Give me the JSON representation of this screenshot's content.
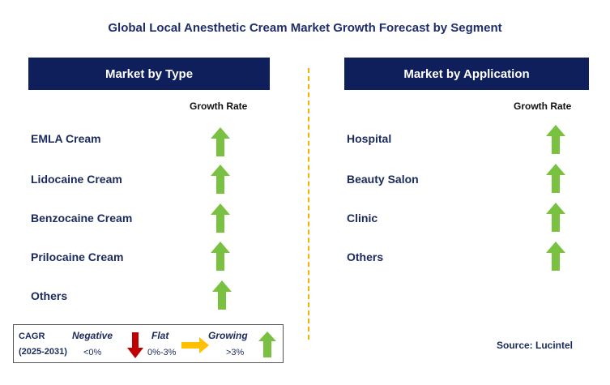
{
  "title": "Global Local Anesthetic Cream Market Growth Forecast by Segment",
  "left_panel": {
    "header": "Market by Type",
    "growth_label": "Growth Rate",
    "items": [
      "EMLA Cream",
      "Lidocaine Cream",
      "Benzocaine Cream",
      "Prilocaine Cream",
      "Others"
    ]
  },
  "right_panel": {
    "header": "Market by Application",
    "growth_label": "Growth Rate",
    "items": [
      "Hospital",
      "Beauty Salon",
      "Clinic",
      "Others"
    ]
  },
  "legend": {
    "cagr": "CAGR",
    "period": "(2025-2031)",
    "negative": "Negative",
    "negative_range": "<0%",
    "flat": "Flat",
    "flat_range": "0%-3%",
    "growing": "Growing",
    "growing_range": ">3%"
  },
  "source": "Source: Lucintel",
  "colors": {
    "header_bg": "#0f1f5c",
    "arrow_green": "#7ac142",
    "arrow_red": "#c00000",
    "arrow_yellow": "#ffc000",
    "divider": "#f0b400"
  }
}
